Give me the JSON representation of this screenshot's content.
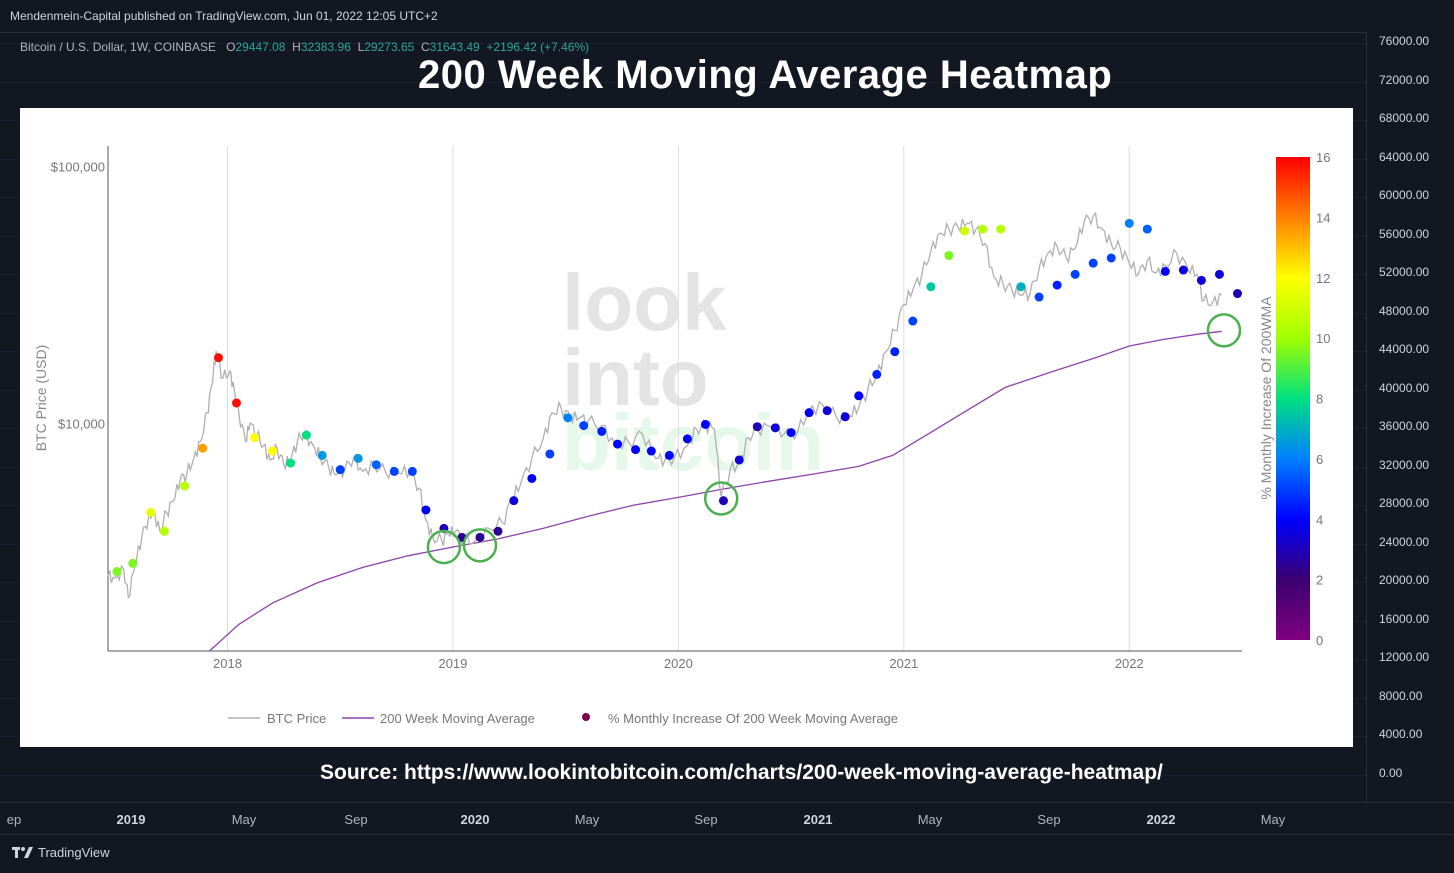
{
  "header": {
    "published": "Mendenmein-Capital published on TradingView.com, Jun 01, 2022 12:05 UTC+2"
  },
  "legend": {
    "symbol": "Bitcoin / U.S. Dollar, 1W, COINBASE",
    "o_label": "O",
    "o_value": "29447.08",
    "h_label": "H",
    "h_value": "32383.96",
    "l_label": "L",
    "l_value": "29273.65",
    "c_label": "C",
    "c_value": "31643.49",
    "change": "+2196.42 (+7.46%)"
  },
  "overlay": {
    "title": "200 Week Moving Average Heatmap",
    "source": "Source: https://www.lookintobitcoin.com/charts/200-week-moving-average-heatmap/"
  },
  "price_scale": [
    "76000.00",
    "72000.00",
    "68000.00",
    "64000.00",
    "60000.00",
    "56000.00",
    "52000.00",
    "48000.00",
    "44000.00",
    "40000.00",
    "36000.00",
    "32000.00",
    "28000.00",
    "24000.00",
    "20000.00",
    "16000.00",
    "12000.00",
    "8000.00",
    "4000.00",
    "0.00"
  ],
  "time_axis": [
    {
      "label": "ep",
      "bold": false
    },
    {
      "label": "2019",
      "bold": true
    },
    {
      "label": "May",
      "bold": false
    },
    {
      "label": "Sep",
      "bold": false
    },
    {
      "label": "2020",
      "bold": true
    },
    {
      "label": "May",
      "bold": false
    },
    {
      "label": "Sep",
      "bold": false
    },
    {
      "label": "2021",
      "bold": true
    },
    {
      "label": "May",
      "bold": false
    },
    {
      "label": "Sep",
      "bold": false
    },
    {
      "label": "2022",
      "bold": true
    },
    {
      "label": "May",
      "bold": false
    }
  ],
  "footer": {
    "brand": "TradingView"
  },
  "colors": {
    "bg": "#131722",
    "panel": "#ffffff",
    "price_line": "#b0b0b0",
    "ma_line": "#8e44ad",
    "circle": "#4caf50",
    "watermark_grey": "#e4e4e4",
    "watermark_green": "#e6f8ea"
  },
  "watermark": {
    "line1": "look",
    "line2": "into",
    "line3": "bitcoin"
  },
  "chart_data": {
    "type": "scatter",
    "title": "200 Week Moving Average Heatmap",
    "ylabel": "BTC Price (USD)",
    "y_scale": "log",
    "ylim": [
      1300,
      120000
    ],
    "y_ticks": [
      {
        "value": 100000,
        "label": "$100,000"
      },
      {
        "value": 10000,
        "label": "$10,000"
      }
    ],
    "x_ticks": [
      "2018",
      "2019",
      "2020",
      "2021",
      "2022"
    ],
    "xlim": [
      2017.47,
      2022.5
    ],
    "colorbar": {
      "label": "% Monthly Increase Of 200WMA",
      "min": 0,
      "max": 16,
      "ticks": [
        "16",
        "14",
        "12",
        "10",
        "8",
        "6",
        "4",
        "2",
        "0"
      ]
    },
    "legend_entries": [
      "BTC Price",
      "200 Week Moving Average",
      "% Monthly Increase Of 200 Week Moving Average"
    ],
    "price_series": [
      [
        2017.47,
        2550
      ],
      [
        2017.5,
        2500
      ],
      [
        2017.54,
        2700
      ],
      [
        2017.56,
        2100
      ],
      [
        2017.59,
        2800
      ],
      [
        2017.62,
        3600
      ],
      [
        2017.65,
        4300
      ],
      [
        2017.67,
        4600
      ],
      [
        2017.7,
        3800
      ],
      [
        2017.73,
        4500
      ],
      [
        2017.76,
        5000
      ],
      [
        2017.79,
        6000
      ],
      [
        2017.82,
        6400
      ],
      [
        2017.85,
        7300
      ],
      [
        2017.88,
        8500
      ],
      [
        2017.91,
        11000
      ],
      [
        2017.93,
        14000
      ],
      [
        2017.95,
        19000
      ],
      [
        2017.98,
        15000
      ],
      [
        2018.01,
        16000
      ],
      [
        2018.03,
        13500
      ],
      [
        2018.05,
        11000
      ],
      [
        2018.08,
        8500
      ],
      [
        2018.1,
        10000
      ],
      [
        2018.13,
        9000
      ],
      [
        2018.16,
        8200
      ],
      [
        2018.19,
        7200
      ],
      [
        2018.22,
        8000
      ],
      [
        2018.25,
        6900
      ],
      [
        2018.28,
        7200
      ],
      [
        2018.31,
        8500
      ],
      [
        2018.34,
        9200
      ],
      [
        2018.38,
        8200
      ],
      [
        2018.41,
        7500
      ],
      [
        2018.45,
        6700
      ],
      [
        2018.48,
        6300
      ],
      [
        2018.52,
        6600
      ],
      [
        2018.56,
        7400
      ],
      [
        2018.6,
        6500
      ],
      [
        2018.65,
        6900
      ],
      [
        2018.7,
        6500
      ],
      [
        2018.76,
        6400
      ],
      [
        2018.81,
        6500
      ],
      [
        2018.85,
        5600
      ],
      [
        2018.88,
        4200
      ],
      [
        2018.91,
        3600
      ],
      [
        2018.95,
        3500
      ],
      [
        2018.98,
        3700
      ],
      [
        2019.01,
        3800
      ],
      [
        2019.05,
        3500
      ],
      [
        2019.1,
        3500
      ],
      [
        2019.16,
        3900
      ],
      [
        2019.22,
        4100
      ],
      [
        2019.26,
        5000
      ],
      [
        2019.3,
        5800
      ],
      [
        2019.35,
        7300
      ],
      [
        2019.4,
        8700
      ],
      [
        2019.44,
        11000
      ],
      [
        2019.48,
        11500
      ],
      [
        2019.52,
        10500
      ],
      [
        2019.56,
        10500
      ],
      [
        2019.6,
        10200
      ],
      [
        2019.66,
        9800
      ],
      [
        2019.72,
        8300
      ],
      [
        2019.78,
        8400
      ],
      [
        2019.84,
        9100
      ],
      [
        2019.9,
        7300
      ],
      [
        2019.94,
        7200
      ],
      [
        2019.98,
        7300
      ],
      [
        2020.04,
        8200
      ],
      [
        2020.08,
        9500
      ],
      [
        2020.12,
        9800
      ],
      [
        2020.16,
        9500
      ],
      [
        2020.19,
        5200
      ],
      [
        2020.23,
        6600
      ],
      [
        2020.27,
        7000
      ],
      [
        2020.31,
        8800
      ],
      [
        2020.35,
        9500
      ],
      [
        2020.41,
        9700
      ],
      [
        2020.47,
        9100
      ],
      [
        2020.53,
        9300
      ],
      [
        2020.58,
        11300
      ],
      [
        2020.64,
        11800
      ],
      [
        2020.7,
        10600
      ],
      [
        2020.76,
        10700
      ],
      [
        2020.8,
        11500
      ],
      [
        2020.84,
        13500
      ],
      [
        2020.88,
        15500
      ],
      [
        2020.92,
        19000
      ],
      [
        2020.96,
        23000
      ],
      [
        2021.0,
        29000
      ],
      [
        2021.04,
        33000
      ],
      [
        2021.08,
        38000
      ],
      [
        2021.12,
        47000
      ],
      [
        2021.16,
        55000
      ],
      [
        2021.2,
        57000
      ],
      [
        2021.24,
        58000
      ],
      [
        2021.28,
        60000
      ],
      [
        2021.32,
        57000
      ],
      [
        2021.36,
        50000
      ],
      [
        2021.4,
        37000
      ],
      [
        2021.44,
        35000
      ],
      [
        2021.48,
        33000
      ],
      [
        2021.52,
        31500
      ],
      [
        2021.56,
        32000
      ],
      [
        2021.6,
        40000
      ],
      [
        2021.64,
        46000
      ],
      [
        2021.68,
        49000
      ],
      [
        2021.72,
        44000
      ],
      [
        2021.76,
        48000
      ],
      [
        2021.8,
        61000
      ],
      [
        2021.84,
        64000
      ],
      [
        2021.88,
        57000
      ],
      [
        2021.92,
        50000
      ],
      [
        2021.96,
        48000
      ],
      [
        2022.0,
        42000
      ],
      [
        2022.04,
        38000
      ],
      [
        2022.08,
        43000
      ],
      [
        2022.12,
        38500
      ],
      [
        2022.16,
        41000
      ],
      [
        2022.21,
        46000
      ],
      [
        2022.26,
        40000
      ],
      [
        2022.3,
        38000
      ],
      [
        2022.33,
        30000
      ],
      [
        2022.37,
        29500
      ],
      [
        2022.41,
        31600
      ]
    ],
    "ma_series": [
      [
        2017.92,
        1300
      ],
      [
        2018.05,
        1650
      ],
      [
        2018.2,
        2000
      ],
      [
        2018.4,
        2400
      ],
      [
        2018.6,
        2750
      ],
      [
        2018.8,
        3050
      ],
      [
        2019.0,
        3300
      ],
      [
        2019.2,
        3550
      ],
      [
        2019.4,
        3900
      ],
      [
        2019.6,
        4350
      ],
      [
        2019.8,
        4800
      ],
      [
        2020.0,
        5150
      ],
      [
        2020.2,
        5550
      ],
      [
        2020.4,
        5950
      ],
      [
        2020.6,
        6350
      ],
      [
        2020.8,
        6800
      ],
      [
        2020.95,
        7500
      ],
      [
        2021.1,
        9000
      ],
      [
        2021.3,
        11500
      ],
      [
        2021.45,
        13800
      ],
      [
        2021.65,
        15800
      ],
      [
        2021.85,
        18000
      ],
      [
        2022.0,
        20000
      ],
      [
        2022.15,
        21200
      ],
      [
        2022.3,
        22200
      ],
      [
        2022.41,
        22800
      ]
    ],
    "heat_points": [
      [
        2017.51,
        2650,
        9.5
      ],
      [
        2017.58,
        2850,
        9.5
      ],
      [
        2017.66,
        4500,
        11.5
      ],
      [
        2017.72,
        3800,
        10.5
      ],
      [
        2017.81,
        5700,
        10.5
      ],
      [
        2017.89,
        8000,
        13.5
      ],
      [
        2017.96,
        18000,
        15.8
      ],
      [
        2018.04,
        12000,
        15.8
      ],
      [
        2018.12,
        8800,
        12
      ],
      [
        2018.2,
        7800,
        12
      ],
      [
        2018.28,
        7000,
        8
      ],
      [
        2018.35,
        9000,
        8
      ],
      [
        2018.42,
        7500,
        6.5
      ],
      [
        2018.5,
        6600,
        5
      ],
      [
        2018.58,
        7300,
        6.5
      ],
      [
        2018.66,
        6900,
        5.5
      ],
      [
        2018.74,
        6500,
        5
      ],
      [
        2018.82,
        6500,
        5
      ],
      [
        2018.88,
        4600,
        4
      ],
      [
        2018.96,
        3900,
        3
      ],
      [
        2019.04,
        3600,
        2.5
      ],
      [
        2019.12,
        3600,
        2.5
      ],
      [
        2019.2,
        3800,
        2.5
      ],
      [
        2019.27,
        5000,
        3.5
      ],
      [
        2019.35,
        6100,
        4
      ],
      [
        2019.43,
        7600,
        5
      ],
      [
        2019.51,
        10500,
        6
      ],
      [
        2019.58,
        9800,
        5
      ],
      [
        2019.66,
        9300,
        4.5
      ],
      [
        2019.73,
        8300,
        4
      ],
      [
        2019.81,
        7900,
        4
      ],
      [
        2019.88,
        7800,
        4
      ],
      [
        2019.96,
        7500,
        4
      ],
      [
        2020.04,
        8700,
        4
      ],
      [
        2020.12,
        9900,
        4
      ],
      [
        2020.2,
        5000,
        3
      ],
      [
        2020.27,
        7200,
        3.5
      ],
      [
        2020.35,
        9700,
        3
      ],
      [
        2020.43,
        9600,
        3.5
      ],
      [
        2020.5,
        9200,
        4
      ],
      [
        2020.58,
        11000,
        4
      ],
      [
        2020.66,
        11200,
        3.5
      ],
      [
        2020.74,
        10600,
        3.5
      ],
      [
        2020.8,
        12800,
        4
      ],
      [
        2020.88,
        15500,
        4.5
      ],
      [
        2020.96,
        19000,
        4.5
      ],
      [
        2021.04,
        25000,
        5
      ],
      [
        2021.12,
        34000,
        7.5
      ],
      [
        2021.2,
        45000,
        9.5
      ],
      [
        2021.27,
        56000,
        11
      ],
      [
        2021.35,
        57000,
        10.5
      ],
      [
        2021.43,
        57000,
        10.5
      ],
      [
        2021.52,
        34000,
        7
      ],
      [
        2021.6,
        31000,
        5
      ],
      [
        2021.68,
        34500,
        4.5
      ],
      [
        2021.76,
        38000,
        5
      ],
      [
        2021.84,
        42000,
        5
      ],
      [
        2021.92,
        44000,
        5
      ],
      [
        2022.0,
        60000,
        6
      ],
      [
        2022.08,
        57000,
        5.5
      ],
      [
        2022.16,
        39000,
        4
      ],
      [
        2022.24,
        39500,
        3.5
      ],
      [
        2022.32,
        36000,
        3.5
      ],
      [
        2022.4,
        38000,
        3.5
      ],
      [
        2022.48,
        32000,
        3
      ]
    ],
    "highlight_circles": [
      [
        2018.96,
        3300
      ],
      [
        2019.12,
        3350
      ],
      [
        2020.19,
        5100
      ],
      [
        2022.42,
        23000
      ]
    ]
  }
}
